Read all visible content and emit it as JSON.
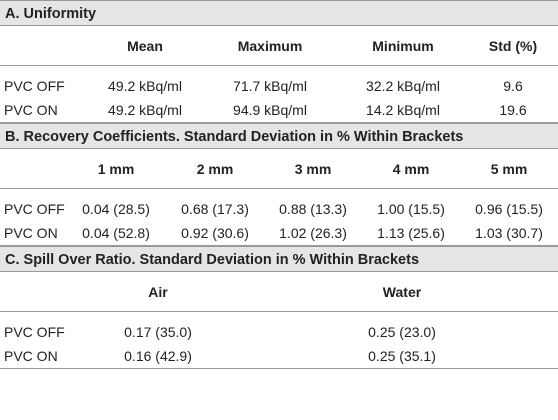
{
  "sections": {
    "uniformity": {
      "title": "A. Uniformity",
      "columns": [
        "Mean",
        "Maximum",
        "Minimum",
        "Std (%)"
      ],
      "rows": [
        {
          "label": "PVC OFF",
          "values": [
            "49.2 kBq/ml",
            "71.7 kBq/ml",
            "32.2 kBq/ml",
            "9.6"
          ]
        },
        {
          "label": "PVC ON",
          "values": [
            "49.2 kBq/ml",
            "94.9 kBq/ml",
            "14.2 kBq/ml",
            "19.6"
          ]
        }
      ]
    },
    "recovery": {
      "title": "B. Recovery Coefficients. Standard Deviation in % Within Brackets",
      "columns": [
        "1 mm",
        "2 mm",
        "3 mm",
        "4 mm",
        "5 mm"
      ],
      "rows": [
        {
          "label": "PVC OFF",
          "values": [
            "0.04 (28.5)",
            "0.68 (17.3)",
            "0.88 (13.3)",
            "1.00 (15.5)",
            "0.96 (15.5)"
          ]
        },
        {
          "label": "PVC ON",
          "values": [
            "0.04 (52.8)",
            "0.92 (30.6)",
            "1.02 (26.3)",
            "1.13 (25.6)",
            "1.03 (30.7)"
          ]
        }
      ]
    },
    "spillover": {
      "title": "C. Spill Over Ratio. Standard Deviation in % Within Brackets",
      "columns": [
        "Air",
        "Water"
      ],
      "rows": [
        {
          "label": "PVC OFF",
          "values": [
            "0.17 (35.0)",
            "0.25 (23.0)"
          ]
        },
        {
          "label": "PVC ON",
          "values": [
            "0.16 (42.9)",
            "0.25 (35.1)"
          ]
        }
      ]
    }
  }
}
